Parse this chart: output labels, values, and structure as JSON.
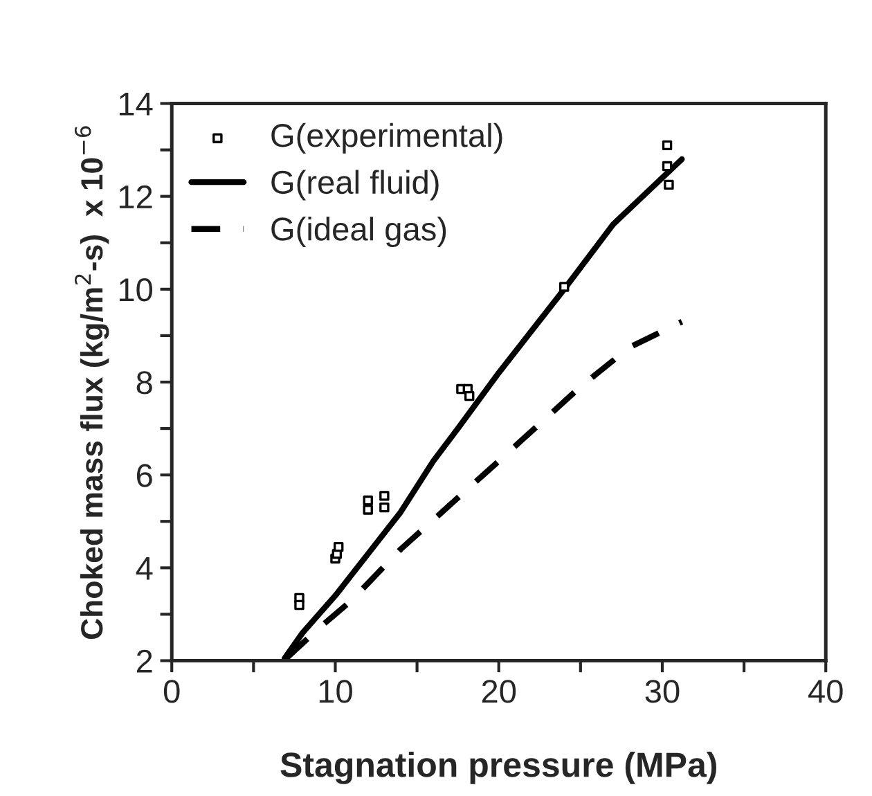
{
  "chart_data": {
    "type": "scatter",
    "xlabel": "Stagnation pressure (MPa)",
    "ylabel": "Choked mass flux (kg/m$^{2}$-s)  x 10$^{−6}$",
    "series": [
      {
        "name": "G(experimental)",
        "marker": "square",
        "color": "#000000",
        "x": [
          7.8,
          7.8,
          10,
          10.1,
          10.2,
          12,
          12,
          13,
          13,
          17.7,
          18.1,
          18.2,
          24,
          30.3,
          30.3,
          30.4
        ],
        "values": [
          3.35,
          3.2,
          4.2,
          4.3,
          4.45,
          5.45,
          5.25,
          5.55,
          5.3,
          7.85,
          7.85,
          7.7,
          10.05,
          13.1,
          12.65,
          12.25
        ]
      },
      {
        "name": "G(real fluid)",
        "type": "line",
        "line_style": "solid",
        "color": "#000000",
        "x": [
          6.9,
          8,
          10,
          12,
          14,
          16,
          17.5,
          20,
          24,
          27,
          31.2
        ],
        "values": [
          2.05,
          2.6,
          3.4,
          4.3,
          5.2,
          6.3,
          7.0,
          8.2,
          10.0,
          11.4,
          12.8
        ]
      },
      {
        "name": "G(ideal gas)",
        "type": "line",
        "line_style": "dashed",
        "color": "#000000",
        "x": [
          7,
          9,
          11,
          14,
          20,
          25,
          28,
          31.2
        ],
        "values": [
          2.05,
          2.7,
          3.3,
          4.4,
          6.3,
          7.9,
          8.75,
          9.3
        ]
      }
    ],
    "xlim": [
      0,
      40
    ],
    "ylim": [
      2,
      14
    ],
    "xticks": [
      0,
      {
        "value": 5,
        "label": null
      },
      10,
      {
        "value": 15,
        "label": null
      },
      20,
      {
        "value": 25,
        "label": null
      },
      30,
      {
        "value": 35,
        "label": null
      },
      40
    ],
    "yticks": [
      2,
      {
        "value": 3,
        "label": null
      },
      4,
      {
        "value": 5,
        "label": null
      },
      6,
      {
        "value": 7,
        "label": null
      },
      8,
      {
        "value": 9,
        "label": null
      },
      10,
      {
        "value": 11,
        "label": null
      },
      12,
      {
        "value": 13,
        "label": null
      },
      14
    ],
    "grid": false,
    "legend": "top left"
  }
}
